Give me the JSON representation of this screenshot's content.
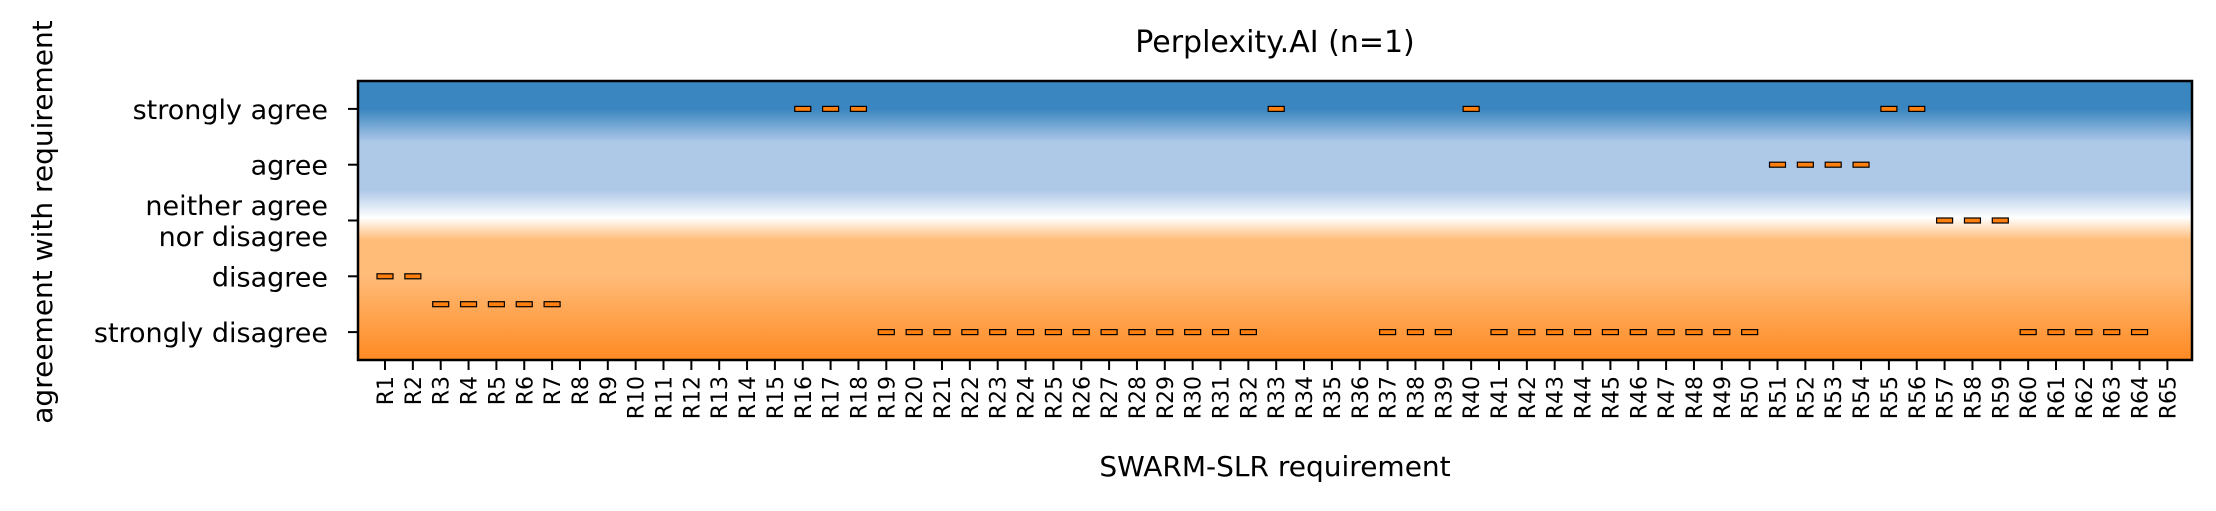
{
  "chart_data": {
    "type": "heatmap",
    "title": "Perplexity.AI (n=1)",
    "xlabel": "SWARM-SLR requirement",
    "ylabel": "agreement with requirement",
    "categories": [
      "R1",
      "R2",
      "R3",
      "R4",
      "R5",
      "R6",
      "R7",
      "R8",
      "R9",
      "R10",
      "R11",
      "R12",
      "R13",
      "R14",
      "R15",
      "R16",
      "R17",
      "R18",
      "R19",
      "R20",
      "R21",
      "R22",
      "R23",
      "R24",
      "R25",
      "R26",
      "R27",
      "R28",
      "R29",
      "R30",
      "R31",
      "R32",
      "R33",
      "R34",
      "R35",
      "R36",
      "R37",
      "R38",
      "R39",
      "R40",
      "R41",
      "R42",
      "R43",
      "R44",
      "R45",
      "R46",
      "R47",
      "R48",
      "R49",
      "R50",
      "R51",
      "R52",
      "R53",
      "R54",
      "R55",
      "R56",
      "R57",
      "R58",
      "R59",
      "R60",
      "R61",
      "R62",
      "R63",
      "R64",
      "R65"
    ],
    "y_levels": [
      {
        "label": "strongly agree",
        "value": 2
      },
      {
        "label": "agree",
        "value": 1
      },
      {
        "label": "neither agree\nnor disagree",
        "value": 0
      },
      {
        "label": "disagree",
        "value": -1
      },
      {
        "label": "strongly disagree",
        "value": -2
      }
    ],
    "ylim": [
      -2.5,
      2.5
    ],
    "background_gradient": [
      "#3a86c0",
      "#aec8e8",
      "#ffffff",
      "#ffbb78",
      "#ff8a22"
    ],
    "marker_color": "#ff7f0e",
    "marker_edge_color": "#000000",
    "values": [
      {
        "x": "R1",
        "y": -1
      },
      {
        "x": "R2",
        "y": -1
      },
      {
        "x": "R3",
        "y": -1.5
      },
      {
        "x": "R4",
        "y": -1.5
      },
      {
        "x": "R5",
        "y": -1.5
      },
      {
        "x": "R6",
        "y": -1.5
      },
      {
        "x": "R7",
        "y": -1.5
      },
      {
        "x": "R16",
        "y": 2
      },
      {
        "x": "R17",
        "y": 2
      },
      {
        "x": "R18",
        "y": 2
      },
      {
        "x": "R19",
        "y": -2
      },
      {
        "x": "R20",
        "y": -2
      },
      {
        "x": "R21",
        "y": -2
      },
      {
        "x": "R22",
        "y": -2
      },
      {
        "x": "R23",
        "y": -2
      },
      {
        "x": "R24",
        "y": -2
      },
      {
        "x": "R25",
        "y": -2
      },
      {
        "x": "R26",
        "y": -2
      },
      {
        "x": "R27",
        "y": -2
      },
      {
        "x": "R28",
        "y": -2
      },
      {
        "x": "R29",
        "y": -2
      },
      {
        "x": "R30",
        "y": -2
      },
      {
        "x": "R31",
        "y": -2
      },
      {
        "x": "R32",
        "y": -2
      },
      {
        "x": "R33",
        "y": 2
      },
      {
        "x": "R37",
        "y": -2
      },
      {
        "x": "R38",
        "y": -2
      },
      {
        "x": "R39",
        "y": -2
      },
      {
        "x": "R40",
        "y": 2
      },
      {
        "x": "R41",
        "y": -2
      },
      {
        "x": "R42",
        "y": -2
      },
      {
        "x": "R43",
        "y": -2
      },
      {
        "x": "R44",
        "y": -2
      },
      {
        "x": "R45",
        "y": -2
      },
      {
        "x": "R46",
        "y": -2
      },
      {
        "x": "R47",
        "y": -2
      },
      {
        "x": "R48",
        "y": -2
      },
      {
        "x": "R49",
        "y": -2
      },
      {
        "x": "R50",
        "y": -2
      },
      {
        "x": "R51",
        "y": 1
      },
      {
        "x": "R52",
        "y": 1
      },
      {
        "x": "R53",
        "y": 1
      },
      {
        "x": "R54",
        "y": 1
      },
      {
        "x": "R55",
        "y": 2
      },
      {
        "x": "R56",
        "y": 2
      },
      {
        "x": "R57",
        "y": 0
      },
      {
        "x": "R58",
        "y": 0
      },
      {
        "x": "R59",
        "y": 0
      },
      {
        "x": "R60",
        "y": -2
      },
      {
        "x": "R61",
        "y": -2
      },
      {
        "x": "R62",
        "y": -2
      },
      {
        "x": "R63",
        "y": -2
      },
      {
        "x": "R64",
        "y": -2
      }
    ],
    "grid": false,
    "legend": "none"
  }
}
